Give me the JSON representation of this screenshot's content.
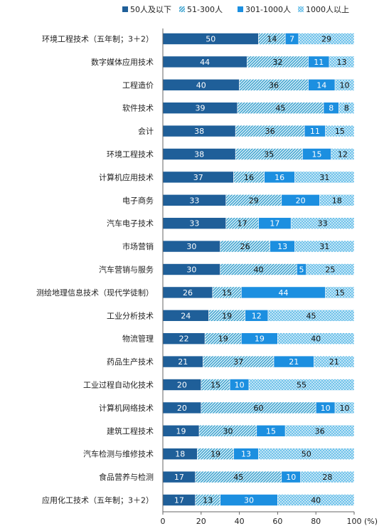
{
  "chart_data": {
    "type": "bar",
    "orientation": "horizontal",
    "stacked": true,
    "title": "",
    "xlabel": "",
    "ylabel": "",
    "x_unit": "(%)",
    "xlim": [
      0,
      100
    ],
    "x_ticks": [
      "0",
      "20",
      "40",
      "60",
      "80",
      "100"
    ],
    "grid": false,
    "legend_position": "top",
    "categories": [
      "环境工程技术（五年制；3＋2）",
      "数字媒体应用技术",
      "工程造价",
      "软件技术",
      "会计",
      "环境工程技术",
      "计算机应用技术",
      "电子商务",
      "汽车电子技术",
      "市场营销",
      "汽车营销与服务",
      "测绘地理信息技术（现代学徒制）",
      "工业分析技术",
      "物流管理",
      "药品生产技术",
      "工业过程自动化技术",
      "计算机网络技术",
      "建筑工程技术",
      "汽车检测与维修技术",
      "食品营养与检测",
      "应用化工技术（五年制；3＋2）"
    ],
    "series": [
      {
        "name": "50人及以下",
        "color": "#1f5f99",
        "pattern": "solid",
        "values": [
          50,
          44,
          40,
          39,
          38,
          38,
          37,
          33,
          33,
          30,
          30,
          26,
          24,
          22,
          21,
          20,
          20,
          19,
          18,
          17,
          17
        ]
      },
      {
        "name": "51-300人",
        "color": "#2f9fd0",
        "pattern": "diagonal",
        "values": [
          14,
          32,
          36,
          45,
          36,
          35,
          16,
          29,
          17,
          26,
          40,
          15,
          19,
          19,
          37,
          15,
          60,
          30,
          19,
          45,
          13
        ]
      },
      {
        "name": "301-1000人",
        "color": "#1c8fe0",
        "pattern": "solid",
        "values": [
          7,
          11,
          14,
          8,
          11,
          15,
          16,
          20,
          17,
          13,
          5,
          44,
          12,
          19,
          21,
          10,
          10,
          15,
          13,
          10,
          30
        ]
      },
      {
        "name": "1000人以上",
        "color": "#39a9e0",
        "pattern": "dots",
        "values": [
          29,
          13,
          10,
          8,
          15,
          12,
          31,
          18,
          33,
          31,
          25,
          15,
          45,
          40,
          21,
          55,
          10,
          36,
          50,
          28,
          40
        ]
      }
    ]
  }
}
